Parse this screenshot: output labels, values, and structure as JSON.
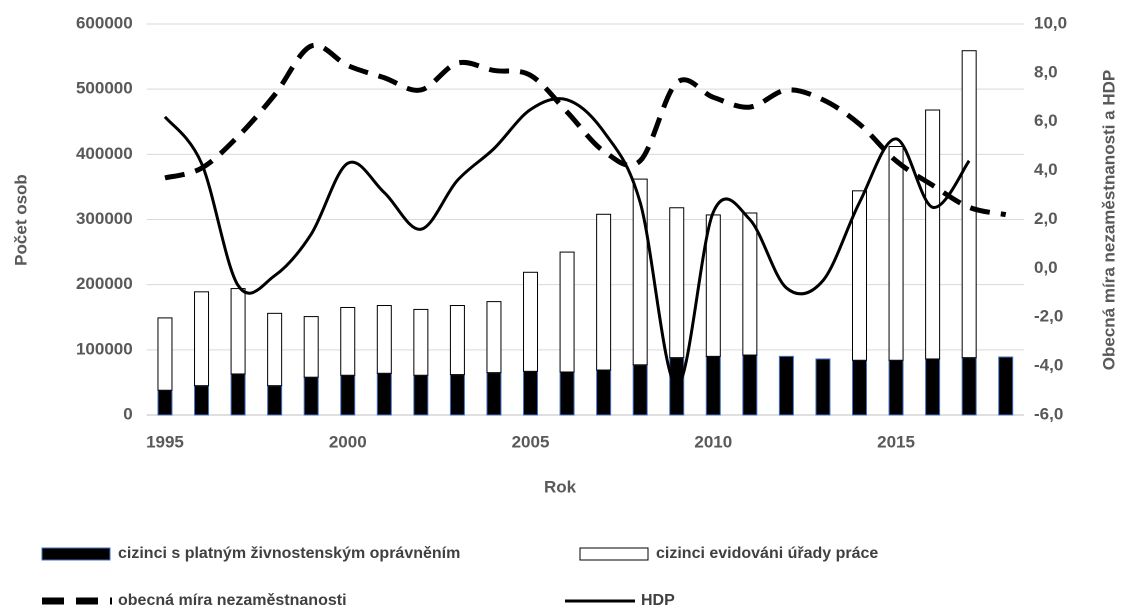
{
  "chart_data": {
    "type": "bar",
    "xlabel": "Rok",
    "ylabel": "Počet osob",
    "y2label": "Obecná míra nezaměstnanosti a HDP",
    "categories": [
      "1995",
      null,
      null,
      null,
      null,
      "2000",
      null,
      null,
      null,
      null,
      "2005",
      null,
      null,
      null,
      null,
      "2010",
      null,
      null,
      null,
      null,
      "2015",
      null,
      null,
      null
    ],
    "stacked": true,
    "grid": true,
    "legend": "bottom",
    "ylim": [
      0,
      600000
    ],
    "yticks": [
      0,
      100000,
      200000,
      300000,
      400000,
      500000,
      600000
    ],
    "y2lim": [
      -6,
      10
    ],
    "y2ticks": [
      {
        "value": -6,
        "label": "-6,0"
      },
      {
        "value": -4,
        "label": "-4,0"
      },
      {
        "value": -2,
        "label": "-2,0"
      },
      {
        "value": 0,
        "label": "0,0"
      },
      {
        "value": 2,
        "label": "2,0"
      },
      {
        "value": 4,
        "label": "4,0"
      },
      {
        "value": 6,
        "label": "6,0"
      },
      {
        "value": 8,
        "label": "8,0"
      },
      {
        "value": 10,
        "label": "10,0"
      }
    ],
    "series": [
      {
        "name": "cizinci s platným živnostenským oprávněním",
        "type": "bar",
        "color": "#000000",
        "edge": "#4472c4",
        "values": [
          38000,
          45000,
          63000,
          45000,
          58000,
          61000,
          64000,
          61000,
          62000,
          65000,
          67000,
          66000,
          69000,
          77000,
          88000,
          90000,
          92000,
          90000,
          86000,
          84000,
          84000,
          86000,
          88000,
          89000
        ]
      },
      {
        "name": "cizinci evidováni úřady práce",
        "type": "bar",
        "color": "#ffffff",
        "edge": "#000000",
        "values": [
          111000,
          144000,
          131000,
          111000,
          93000,
          104000,
          104000,
          101000,
          106000,
          109000,
          152000,
          184000,
          239000,
          285000,
          230000,
          217000,
          218000,
          null,
          null,
          260000,
          328000,
          382000,
          471000,
          null
        ]
      },
      {
        "name": "obecná míra nezaměstnanosti",
        "type": "line",
        "axis": "y2",
        "color": "#000000",
        "dashed": true,
        "values": [
          3.7,
          4.1,
          5.4,
          7.1,
          9.1,
          8.3,
          7.8,
          7.3,
          8.4,
          8.1,
          7.9,
          6.4,
          4.8,
          4.4,
          7.6,
          7.0,
          6.6,
          7.3,
          6.9,
          5.9,
          4.4,
          3.4,
          2.5,
          2.2
        ]
      },
      {
        "name": "HDP",
        "type": "line",
        "axis": "y2",
        "color": "#000000",
        "dashed": false,
        "values": [
          6.2,
          4.3,
          -0.7,
          -0.3,
          1.4,
          4.3,
          3.1,
          1.6,
          3.6,
          4.9,
          6.5,
          6.9,
          5.6,
          2.7,
          -4.8,
          2.3,
          2.0,
          -0.8,
          -0.5,
          2.7,
          5.3,
          2.5,
          4.4,
          null
        ]
      }
    ]
  }
}
